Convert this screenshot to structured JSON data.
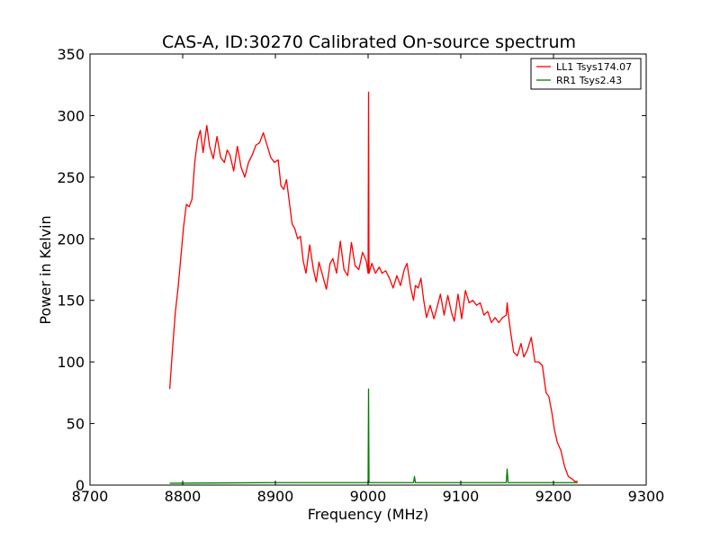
{
  "chart_data": {
    "type": "line",
    "title": "CAS-A, ID:30270 Calibrated On-source spectrum",
    "xlabel": "Frequency (MHz)",
    "ylabel": "Power in Kelvin",
    "xlim": [
      8700,
      9300
    ],
    "ylim": [
      0,
      350
    ],
    "xticks": [
      8700,
      8800,
      8900,
      9000,
      9100,
      9200,
      9300
    ],
    "yticks": [
      0,
      50,
      100,
      150,
      200,
      250,
      300,
      350
    ],
    "grid": false,
    "legend_position": "top-right",
    "series": [
      {
        "name": "LL1 Tsys174.07",
        "color": "#ff0000",
        "points": [
          [
            8786,
            78
          ],
          [
            8789,
            110
          ],
          [
            8792,
            140
          ],
          [
            8795,
            160
          ],
          [
            8798,
            185
          ],
          [
            8801,
            210
          ],
          [
            8804,
            228
          ],
          [
            8807,
            226
          ],
          [
            8810,
            232
          ],
          [
            8813,
            262
          ],
          [
            8816,
            280
          ],
          [
            8819,
            288
          ],
          [
            8822,
            270
          ],
          [
            8826,
            292
          ],
          [
            8829,
            275
          ],
          [
            8833,
            265
          ],
          [
            8837,
            283
          ],
          [
            8841,
            266
          ],
          [
            8845,
            262
          ],
          [
            8848,
            272
          ],
          [
            8851,
            268
          ],
          [
            8855,
            255
          ],
          [
            8859,
            275
          ],
          [
            8863,
            258
          ],
          [
            8867,
            250
          ],
          [
            8871,
            262
          ],
          [
            8875,
            268
          ],
          [
            8879,
            276
          ],
          [
            8883,
            278
          ],
          [
            8887,
            286
          ],
          [
            8891,
            276
          ],
          [
            8895,
            266
          ],
          [
            8899,
            262
          ],
          [
            8903,
            264
          ],
          [
            8906,
            243
          ],
          [
            8909,
            240
          ],
          [
            8912,
            248
          ],
          [
            8915,
            230
          ],
          [
            8918,
            212
          ],
          [
            8921,
            208
          ],
          [
            8924,
            200
          ],
          [
            8927,
            202
          ],
          [
            8930,
            182
          ],
          [
            8933,
            172
          ],
          [
            8937,
            195
          ],
          [
            8941,
            175
          ],
          [
            8944,
            165
          ],
          [
            8947,
            181
          ],
          [
            8951,
            170
          ],
          [
            8955,
            159
          ],
          [
            8959,
            180
          ],
          [
            8962,
            184
          ],
          [
            8966,
            172
          ],
          [
            8970,
            198
          ],
          [
            8974,
            175
          ],
          [
            8978,
            170
          ],
          [
            8982,
            197
          ],
          [
            8986,
            178
          ],
          [
            8990,
            175
          ],
          [
            8994,
            189
          ],
          [
            8998,
            182
          ],
          [
            9000,
            172
          ],
          [
            9000.5,
            319
          ],
          [
            9001,
            172
          ],
          [
            9004,
            180
          ],
          [
            9008,
            172
          ],
          [
            9012,
            177
          ],
          [
            9015,
            172
          ],
          [
            9019,
            174
          ],
          [
            9023,
            168
          ],
          [
            9027,
            160
          ],
          [
            9031,
            170
          ],
          [
            9035,
            162
          ],
          [
            9039,
            175
          ],
          [
            9042,
            180
          ],
          [
            9046,
            160
          ],
          [
            9049,
            150
          ],
          [
            9051,
            162
          ],
          [
            9054,
            160
          ],
          [
            9057,
            168
          ],
          [
            9060,
            150
          ],
          [
            9063,
            136
          ],
          [
            9067,
            146
          ],
          [
            9071,
            135
          ],
          [
            9075,
            146
          ],
          [
            9078,
            155
          ],
          [
            9082,
            138
          ],
          [
            9086,
            154
          ],
          [
            9090,
            140
          ],
          [
            9093,
            133
          ],
          [
            9097,
            155
          ],
          [
            9101,
            135
          ],
          [
            9105,
            158
          ],
          [
            9109,
            148
          ],
          [
            9113,
            150
          ],
          [
            9117,
            146
          ],
          [
            9121,
            148
          ],
          [
            9125,
            138
          ],
          [
            9129,
            141
          ],
          [
            9133,
            132
          ],
          [
            9137,
            136
          ],
          [
            9141,
            132
          ],
          [
            9145,
            136
          ],
          [
            9149,
            138
          ],
          [
            9150,
            148
          ],
          [
            9151,
            140
          ],
          [
            9154,
            123
          ],
          [
            9157,
            108
          ],
          [
            9161,
            105
          ],
          [
            9165,
            115
          ],
          [
            9168,
            104
          ],
          [
            9172,
            110
          ],
          [
            9176,
            120
          ],
          [
            9180,
            100
          ],
          [
            9184,
            100
          ],
          [
            9188,
            97
          ],
          [
            9192,
            75
          ],
          [
            9195,
            72
          ],
          [
            9198,
            60
          ],
          [
            9201,
            45
          ],
          [
            9204,
            35
          ],
          [
            9208,
            28
          ],
          [
            9212,
            15
          ],
          [
            9216,
            7
          ],
          [
            9220,
            5
          ],
          [
            9223,
            3
          ],
          [
            9226,
            3
          ]
        ]
      },
      {
        "name": "RR1 Tsys2.43",
        "color": "#008000",
        "points": [
          [
            8786,
            1.5
          ],
          [
            8850,
            1.8
          ],
          [
            8900,
            2.0
          ],
          [
            8999,
            2.0
          ],
          [
            9000,
            2.0
          ],
          [
            9000.5,
            78
          ],
          [
            9001,
            2.0
          ],
          [
            9049,
            2.0
          ],
          [
            9050,
            7
          ],
          [
            9051,
            2.0
          ],
          [
            9149,
            2.0
          ],
          [
            9150,
            13
          ],
          [
            9151,
            2.0
          ],
          [
            9226,
            2.0
          ]
        ]
      }
    ]
  }
}
